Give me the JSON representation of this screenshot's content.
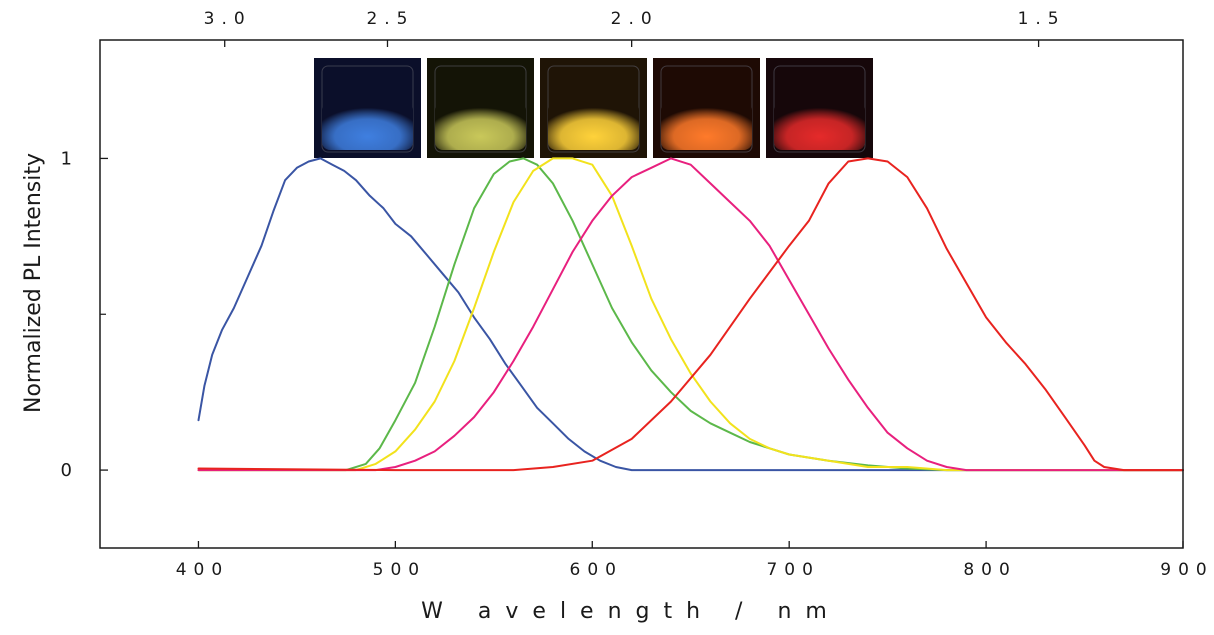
{
  "chart_data": {
    "type": "line",
    "xlabel": "W avelength / nm",
    "ylabel": "Normalized PL Intensity",
    "xlim": [
      350,
      900
    ],
    "ylim": [
      -0.25,
      1.38
    ],
    "x_ticks": [
      {
        "value": 400,
        "label": "400"
      },
      {
        "value": 500,
        "label": "500"
      },
      {
        "value": 600,
        "label": "600"
      },
      {
        "value": 700,
        "label": "700"
      },
      {
        "value": 800,
        "label": "800"
      },
      {
        "value": 900,
        "label": "900"
      }
    ],
    "top_axis": {
      "unit_note": "photon energy (eV), tick position = 1240 / energy nm",
      "ticks": [
        {
          "value": 3.0,
          "label": "3.0"
        },
        {
          "value": 2.5,
          "label": "2.5"
        },
        {
          "value": 2.0,
          "label": "2.0"
        },
        {
          "value": 1.5,
          "label": "1.5"
        }
      ]
    },
    "y_ticks": [
      {
        "value": 0,
        "label": "0"
      },
      {
        "value": 1,
        "label": "1"
      }
    ],
    "y_minor_ticks": [
      0.5
    ],
    "grid": false,
    "legend": "none",
    "inset_images": {
      "position": "top-center",
      "vials": [
        {
          "glow": "#3f7fe0",
          "bg": "#0b0f2a"
        },
        {
          "glow": "#c9c85a",
          "bg": "#141406"
        },
        {
          "glow": "#ffd23a",
          "bg": "#1f1406"
        },
        {
          "glow": "#ff7a2a",
          "bg": "#1e0a04"
        },
        {
          "glow": "#e52a2a",
          "bg": "#16070a"
        }
      ]
    },
    "series": [
      {
        "color": "#3a55a4",
        "x": [
          400,
          403,
          407,
          412,
          418,
          425,
          432,
          438,
          444,
          450,
          456,
          462,
          468,
          474,
          480,
          487,
          494,
          500,
          508,
          516,
          524,
          532,
          540,
          548,
          556,
          564,
          572,
          580,
          588,
          596,
          604,
          612,
          620,
          640,
          700,
          800,
          900
        ],
        "y": [
          0.16,
          0.27,
          0.37,
          0.45,
          0.52,
          0.62,
          0.72,
          0.83,
          0.93,
          0.97,
          0.99,
          1.0,
          0.98,
          0.96,
          0.93,
          0.88,
          0.84,
          0.79,
          0.75,
          0.69,
          0.63,
          0.57,
          0.49,
          0.42,
          0.34,
          0.27,
          0.2,
          0.15,
          0.1,
          0.06,
          0.03,
          0.01,
          0.0,
          0.0,
          0.0,
          0.0,
          0.0
        ]
      },
      {
        "color": "#5cb84a",
        "x": [
          400,
          450,
          475,
          485,
          492,
          500,
          510,
          520,
          530,
          540,
          550,
          558,
          565,
          572,
          580,
          590,
          600,
          610,
          620,
          630,
          640,
          650,
          660,
          670,
          680,
          690,
          700,
          720,
          740,
          760,
          780,
          800,
          900
        ],
        "y": [
          0.0,
          0.0,
          0.0,
          0.02,
          0.07,
          0.16,
          0.28,
          0.46,
          0.66,
          0.84,
          0.95,
          0.99,
          1.0,
          0.98,
          0.92,
          0.8,
          0.66,
          0.52,
          0.41,
          0.32,
          0.25,
          0.19,
          0.15,
          0.12,
          0.09,
          0.07,
          0.05,
          0.03,
          0.015,
          0.005,
          0.0,
          0.0,
          0.0
        ]
      },
      {
        "color": "#f2e21c",
        "x": [
          400,
          450,
          480,
          490,
          500,
          510,
          520,
          530,
          540,
          550,
          560,
          570,
          580,
          590,
          600,
          610,
          620,
          630,
          640,
          650,
          660,
          670,
          680,
          690,
          700,
          720,
          740,
          760,
          780,
          800,
          900
        ],
        "y": [
          0.0,
          0.0,
          0.0,
          0.02,
          0.06,
          0.13,
          0.22,
          0.35,
          0.52,
          0.7,
          0.86,
          0.96,
          1.0,
          1.0,
          0.98,
          0.88,
          0.72,
          0.55,
          0.42,
          0.31,
          0.22,
          0.15,
          0.1,
          0.07,
          0.05,
          0.03,
          0.01,
          0.01,
          0.0,
          0.0,
          0.0
        ]
      },
      {
        "color": "#e8207e",
        "x": [
          400,
          450,
          490,
          500,
          510,
          520,
          530,
          540,
          550,
          560,
          570,
          580,
          590,
          600,
          610,
          620,
          630,
          640,
          650,
          660,
          670,
          680,
          690,
          700,
          710,
          720,
          730,
          740,
          750,
          760,
          770,
          780,
          790,
          800,
          900
        ],
        "y": [
          0.0,
          0.0,
          0.0,
          0.01,
          0.03,
          0.06,
          0.11,
          0.17,
          0.25,
          0.35,
          0.46,
          0.58,
          0.7,
          0.8,
          0.88,
          0.94,
          0.97,
          1.0,
          0.98,
          0.92,
          0.86,
          0.8,
          0.72,
          0.61,
          0.5,
          0.39,
          0.29,
          0.2,
          0.12,
          0.07,
          0.03,
          0.01,
          0.0,
          0.0,
          0.0
        ]
      },
      {
        "color": "#e8231f",
        "x": [
          400,
          500,
          560,
          580,
          600,
          620,
          640,
          660,
          680,
          700,
          710,
          720,
          730,
          740,
          750,
          760,
          770,
          780,
          790,
          800,
          810,
          820,
          830,
          840,
          850,
          855,
          860,
          870,
          900
        ],
        "y": [
          0.005,
          0.0,
          0.0,
          0.01,
          0.03,
          0.1,
          0.22,
          0.37,
          0.55,
          0.72,
          0.8,
          0.92,
          0.99,
          1.0,
          0.99,
          0.94,
          0.84,
          0.71,
          0.6,
          0.49,
          0.41,
          0.34,
          0.26,
          0.17,
          0.08,
          0.03,
          0.01,
          0.0,
          0.0
        ]
      }
    ]
  }
}
